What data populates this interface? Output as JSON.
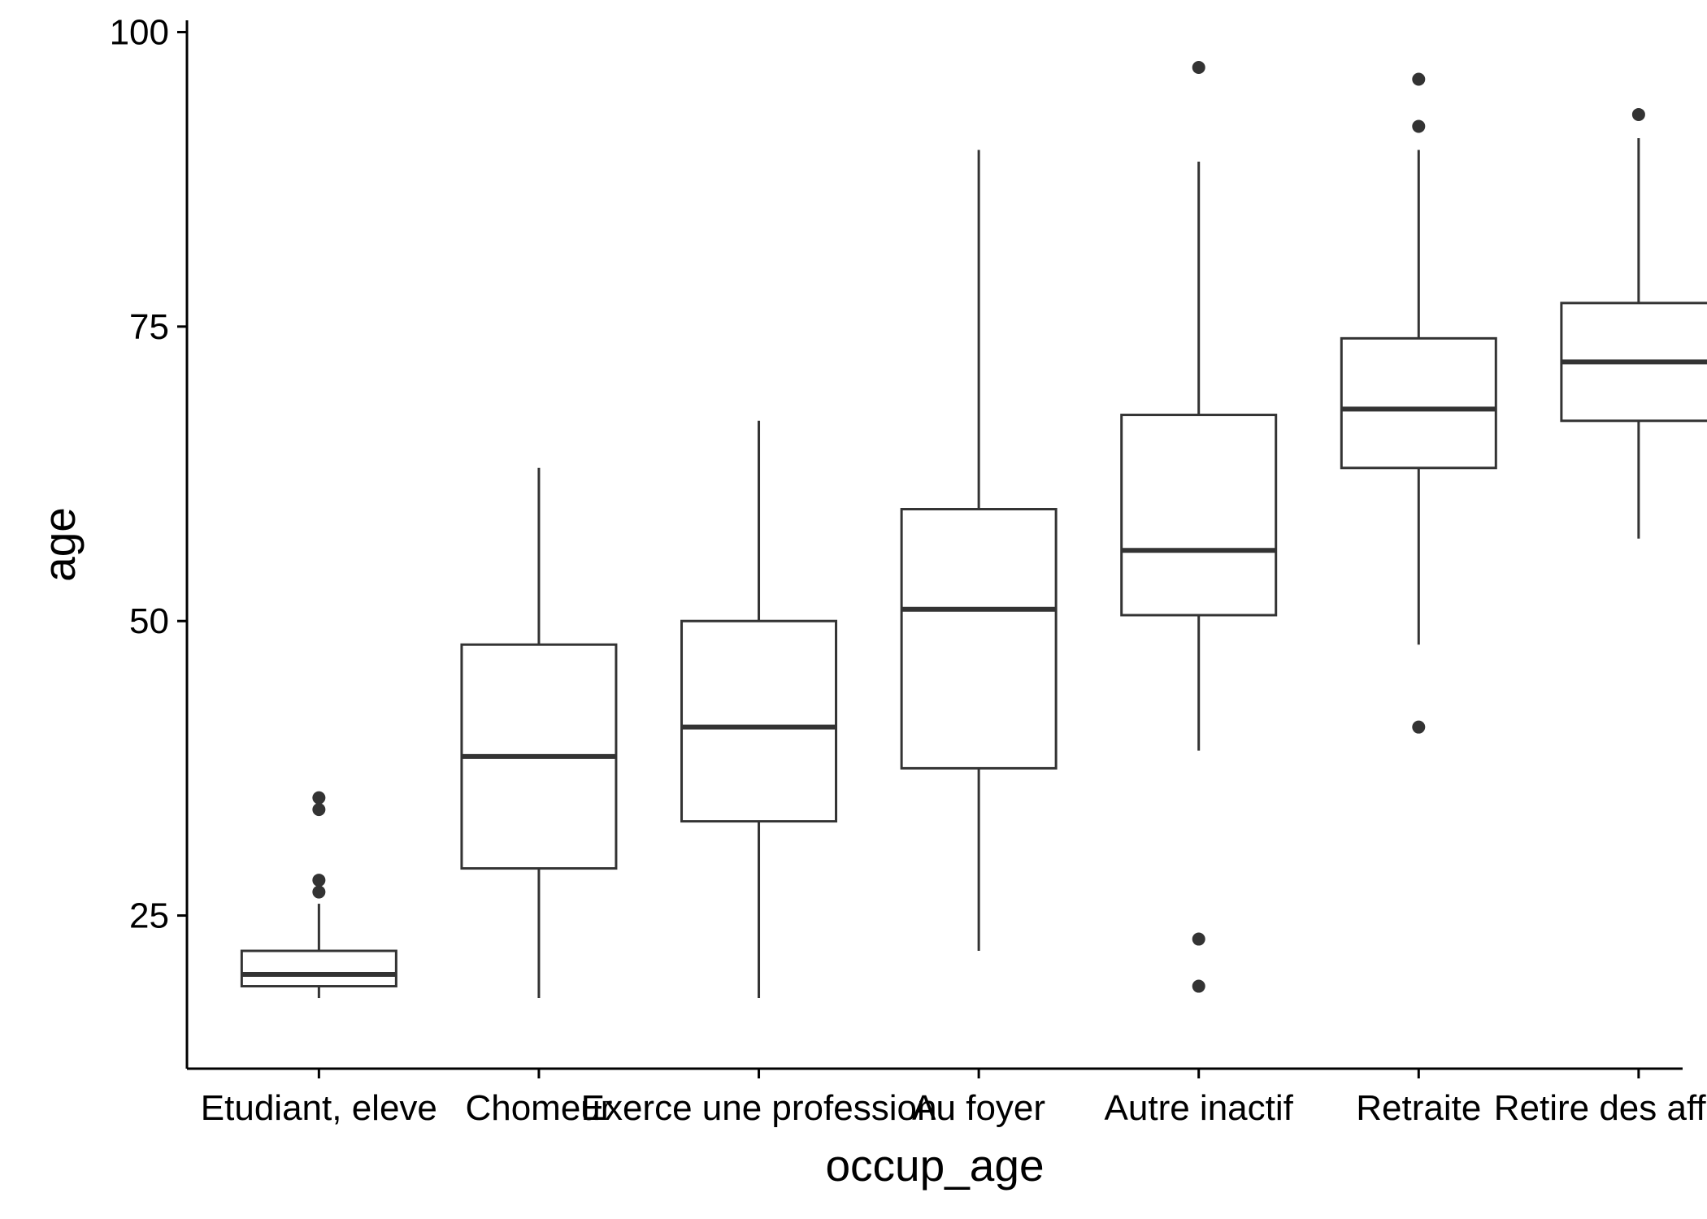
{
  "chart_data": {
    "type": "boxplot",
    "xlabel": "occup_age",
    "ylabel": "age",
    "ylim": [
      12,
      101
    ],
    "yticks": [
      25,
      50,
      75,
      100
    ],
    "grid": false,
    "legend": "none",
    "colors": {
      "stroke": "#333333",
      "axis": "#000000",
      "background": "#ffffff"
    },
    "categories": [
      "Etudiant, eleve",
      "Chomeur",
      "Exerce une profession",
      "Au foyer",
      "Autre inactif",
      "Retraite",
      "Retire des affaires"
    ],
    "boxes": [
      {
        "whisker_low": 18,
        "q1": 19,
        "median": 20,
        "q3": 22,
        "whisker_high": 26,
        "outliers": [
          27,
          28,
          34,
          35
        ]
      },
      {
        "whisker_low": 18,
        "q1": 29,
        "median": 38.5,
        "q3": 48,
        "whisker_high": 63,
        "outliers": []
      },
      {
        "whisker_low": 18,
        "q1": 33,
        "median": 41,
        "q3": 50,
        "whisker_high": 67,
        "outliers": []
      },
      {
        "whisker_low": 22,
        "q1": 37.5,
        "median": 51,
        "q3": 59.5,
        "whisker_high": 90,
        "outliers": []
      },
      {
        "whisker_low": 39,
        "q1": 50.5,
        "median": 56,
        "q3": 67.5,
        "whisker_high": 89,
        "outliers": [
          19,
          23,
          97
        ]
      },
      {
        "whisker_low": 48,
        "q1": 63,
        "median": 68,
        "q3": 74,
        "whisker_high": 90,
        "outliers": [
          41,
          92,
          96
        ]
      },
      {
        "whisker_low": 57,
        "q1": 67,
        "median": 72,
        "q3": 77,
        "whisker_high": 91,
        "outliers": [
          93
        ]
      }
    ]
  }
}
